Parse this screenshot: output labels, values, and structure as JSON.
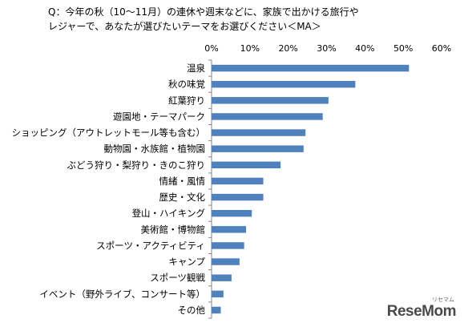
{
  "chart_data": {
    "type": "bar",
    "orientation": "horizontal",
    "title_lines": [
      "Q：今年の秋（10～11月）の連休や週末などに、家族で出かける旅行や",
      "レジャーで、あなたが選びたいテーマをお選びください＜MA＞"
    ],
    "categories": [
      "温泉",
      "秋の味覚",
      "紅葉狩り",
      "遊園地・テーマパーク",
      "ショッピング（アウトレットモール等も含む）",
      "動物園・水族館・植物園",
      "ぶどう狩り・梨狩り・きのこ狩り",
      "情緒・風情",
      "歴史・文化",
      "登山・ハイキング",
      "美術館・博物館",
      "スポーツ・アクティビティ",
      "キャンプ",
      "スポーツ観戦",
      "イベント（野外ライブ、コンサート等）",
      "その他"
    ],
    "values": [
      51.5,
      37.5,
      30.5,
      29.0,
      24.5,
      24.0,
      18.0,
      13.5,
      13.5,
      10.5,
      9.0,
      8.5,
      7.3,
      5.2,
      3.1,
      2.4
    ],
    "unit": "%",
    "xlim": [
      0,
      60
    ],
    "ticks": [
      0,
      10,
      20,
      30,
      40,
      50,
      60
    ],
    "tick_labels": [
      "0%",
      "10%",
      "20%",
      "30%",
      "40%",
      "50%",
      "60%"
    ],
    "grid": false,
    "bar_color": "#4f81bd"
  },
  "watermark": {
    "brand": "ReseMom",
    "kana": "リセマム"
  }
}
